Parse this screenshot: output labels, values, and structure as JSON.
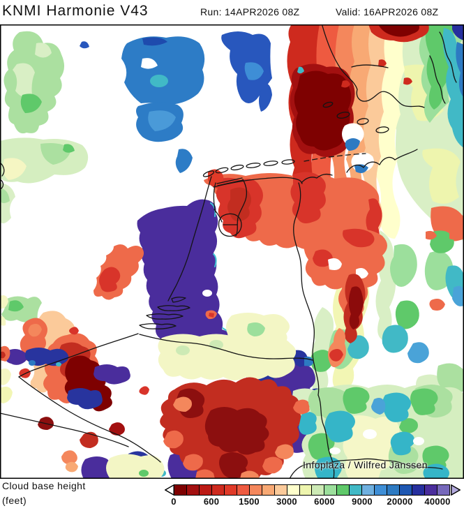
{
  "header": {
    "title": "KNMI Harmonie V43",
    "run": "Run: 14APR2026 08Z",
    "valid": "Valid: 16APR2026 08Z"
  },
  "map": {
    "attribution": "Infoplaza / Wilfred Janssen"
  },
  "legend": {
    "label_line1": "Cloud base height",
    "label_line2": "(feet)",
    "ticks": [
      "0",
      "600",
      "1500",
      "3000",
      "6000",
      "9000",
      "20000",
      "40000"
    ],
    "cells": [
      "#7e0101",
      "#a31010",
      "#bb1a14",
      "#ce2a1e",
      "#e03a28",
      "#ee5a40",
      "#f4875c",
      "#f8a974",
      "#fbca9a",
      "#ffffcc",
      "#eef5ae",
      "#cdeab5",
      "#9cdf9c",
      "#5fc96a",
      "#41b9c6",
      "#6fb0e0",
      "#3e8ed6",
      "#2d7ac2",
      "#1e57b2",
      "#262f9e",
      "#4a2d9c",
      "#7668bb"
    ],
    "left_arrow_color": "#ffffff",
    "right_arrow_color": "#b3aade"
  },
  "chart_data": {
    "type": "heatmap",
    "title": "Cloud base height (feet)",
    "model": "KNMI Harmonie V43",
    "run": "14APR2026 08Z",
    "valid": "16APR2026 08Z",
    "unit": "feet",
    "levels": [
      0,
      600,
      1500,
      3000,
      6000,
      9000,
      20000,
      40000
    ],
    "palette": [
      "#7e0101",
      "#a31010",
      "#bb1a14",
      "#ce2a1e",
      "#e03a28",
      "#ee5a40",
      "#f4875c",
      "#f8a974",
      "#fbca9a",
      "#ffffcc",
      "#eef5ae",
      "#cdeab5",
      "#9cdf9c",
      "#5fc96a",
      "#41b9c6",
      "#6fb0e0",
      "#3e8ed6",
      "#2d7ac2",
      "#1e57b2",
      "#262f9e",
      "#4a2d9c",
      "#7668bb"
    ],
    "legend_position": "bottom",
    "regions_summary": [
      {
        "location": "top-left North Sea",
        "reading": "9000-20000 ft",
        "appearance": "blue patches"
      },
      {
        "location": "upper-left coast/sea",
        "reading": "3000-9000 ft",
        "appearance": "light green patches"
      },
      {
        "location": "north Germany (top right)",
        "reading": "0-1500 ft",
        "appearance": "dark red core grading to orange/peach"
      },
      {
        "location": "far top-right edge",
        "reading": "6000-20000 ft",
        "appearance": "green / teal / blue bands"
      },
      {
        "location": "central Netherlands",
        "reading": "above 40000 ft",
        "appearance": "large dark purple area"
      },
      {
        "location": "northern Netherlands",
        "reading": "600-1500 ft",
        "appearance": "red / salmon band"
      },
      {
        "location": "Belgium / Ardennes",
        "reading": "0-600 ft with 20000-40000 ft patches",
        "appearance": "dark red blob plus navy and purple bands"
      },
      {
        "location": "south-central (Eifel)",
        "reading": "0-1500 ft",
        "appearance": "large red / dark red complex with navy patches"
      },
      {
        "location": "south-east quadrant",
        "reading": "3000-9000 ft",
        "appearance": "mottled pale yellow / green / teal field"
      }
    ]
  }
}
